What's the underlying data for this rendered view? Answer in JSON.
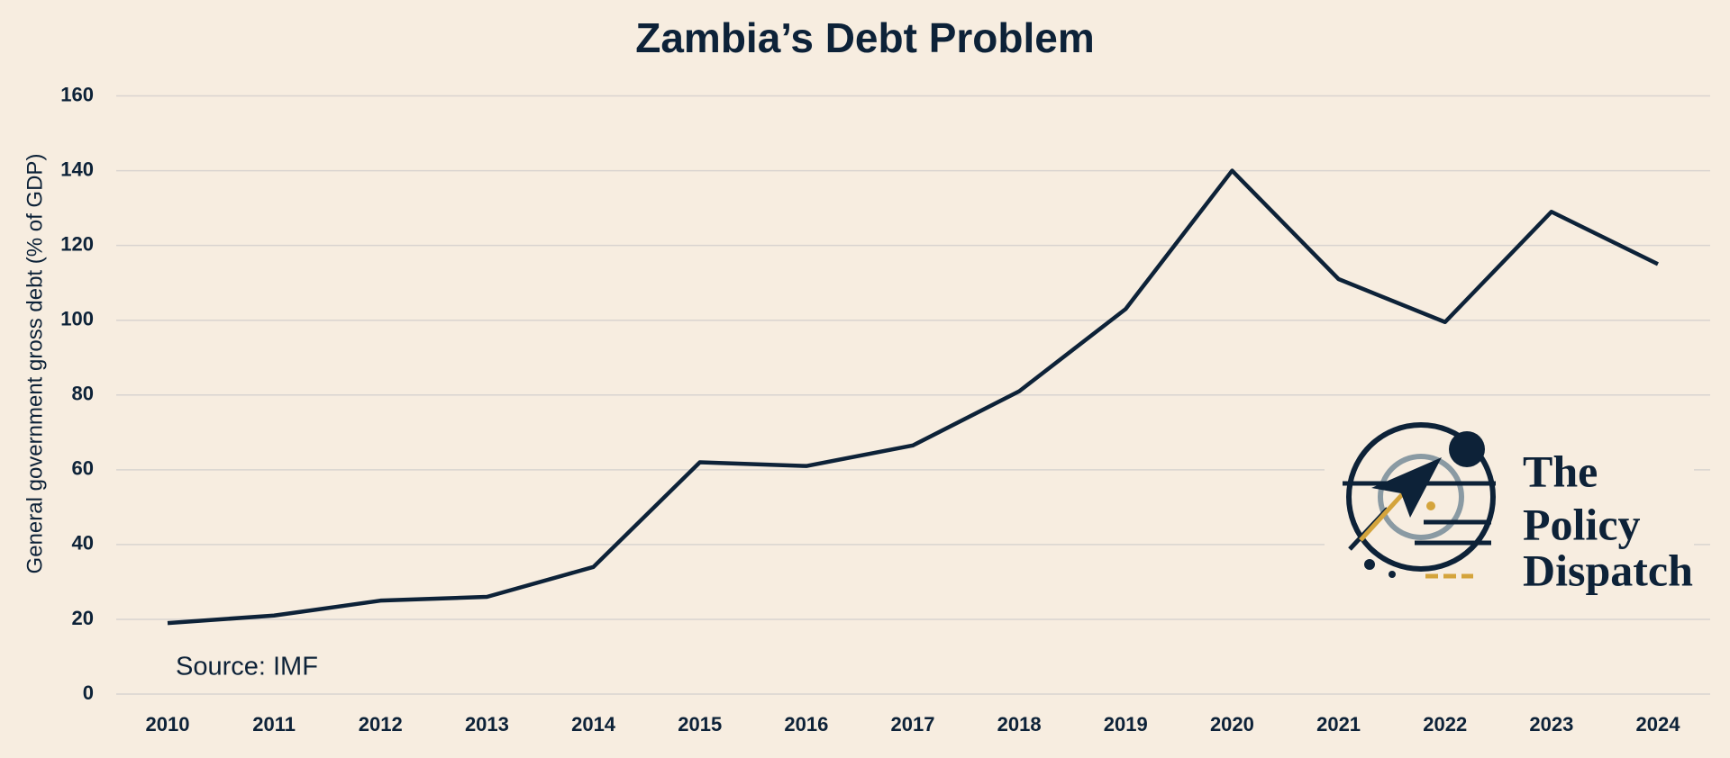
{
  "chart_data": {
    "type": "line",
    "title": "Zambia’s Debt Problem",
    "y_label": "General government gross debt (% of GDP)",
    "annotation": "Source: IMF",
    "logo_text": [
      "The",
      "Policy",
      "Dispatch"
    ],
    "categories": [
      "2010",
      "2011",
      "2012",
      "2013",
      "2014",
      "2015",
      "2016",
      "2017",
      "2018",
      "2019",
      "2020",
      "2021",
      "2022",
      "2023",
      "2024"
    ],
    "series": [
      {
        "name": "General government gross debt",
        "color": "#0d2238",
        "values": [
          19,
          21,
          25,
          26,
          34,
          62,
          61,
          66.5,
          81,
          103,
          140,
          111,
          99.5,
          129,
          115
        ]
      }
    ],
    "ylim": [
      0,
      160
    ],
    "yticks": [
      0,
      20,
      40,
      60,
      80,
      100,
      120,
      140,
      160
    ],
    "grid": true
  }
}
